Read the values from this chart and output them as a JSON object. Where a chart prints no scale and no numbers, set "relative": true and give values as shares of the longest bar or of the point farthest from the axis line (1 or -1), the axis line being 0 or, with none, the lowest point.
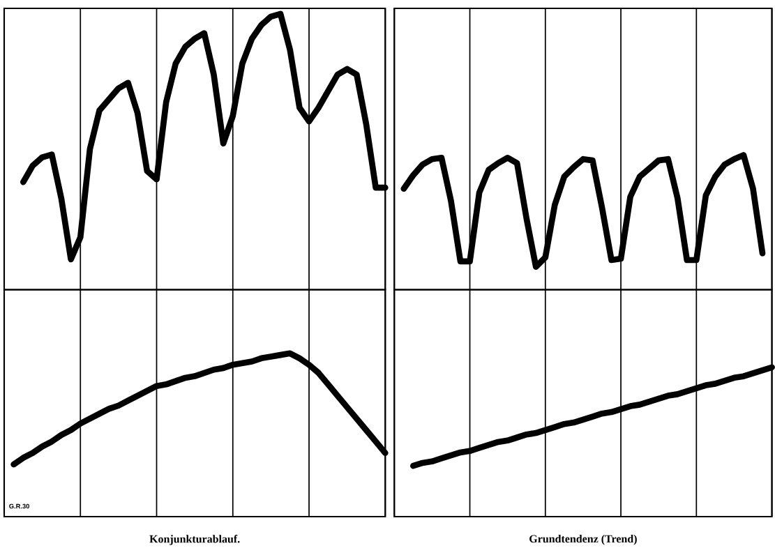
{
  "chart_data": [
    {
      "type": "line",
      "relative": true,
      "grid": "x",
      "color": "#000000",
      "categories": [
        null,
        null,
        null,
        null,
        null,
        null,
        null,
        null,
        null,
        null,
        null,
        null,
        null,
        null,
        null,
        null,
        null,
        null,
        null,
        null,
        null,
        null,
        null,
        null,
        null,
        null,
        null,
        null,
        null,
        null,
        null,
        null,
        null,
        null,
        null,
        null,
        null,
        null,
        null,
        null,
        null
      ],
      "values": [
        null,
        null,
        0.39,
        0.45,
        0.48,
        0.49,
        0.33,
        0.11,
        0.19,
        0.51,
        0.65,
        0.69,
        0.73,
        0.75,
        0.64,
        0.43,
        0.4,
        0.68,
        0.82,
        0.88,
        0.91,
        0.93,
        0.78,
        0.53,
        0.63,
        0.82,
        0.91,
        0.96,
        0.99,
        1,
        0.87,
        0.66,
        0.61,
        0.66,
        0.72,
        0.78,
        0.8,
        0.78,
        0.6,
        0.37,
        0.37
      ]
    },
    {
      "type": "line",
      "relative": true,
      "grid": "x",
      "color": "#000000",
      "categories": [
        null,
        null,
        null,
        null,
        null,
        null,
        null,
        null,
        null,
        null,
        null,
        null,
        null,
        null,
        null,
        null,
        null,
        null,
        null,
        null,
        null,
        null,
        null,
        null,
        null,
        null,
        null,
        null,
        null,
        null,
        null,
        null,
        null,
        null,
        null,
        null,
        null,
        null,
        null,
        null,
        null
      ],
      "values": [
        null,
        0.75,
        0.85,
        0.93,
        0.97,
        0.98,
        0.66,
        0.21,
        0.21,
        0.72,
        0.89,
        0.94,
        0.98,
        0.94,
        0.53,
        0.17,
        0.24,
        0.63,
        0.84,
        0.91,
        0.97,
        0.96,
        0.61,
        0.22,
        0.23,
        0.69,
        0.84,
        0.9,
        0.96,
        0.97,
        0.68,
        0.22,
        0.22,
        0.7,
        0.84,
        0.93,
        0.97,
        1,
        0.75,
        0.27,
        null
      ]
    },
    {
      "type": "line",
      "relative": true,
      "grid": "x",
      "color": "#000000",
      "xlabel": "**Konjunkturablauf.**",
      "annotations": [
        "G.R.30"
      ],
      "categories": [
        null,
        null,
        null,
        null,
        null,
        null,
        null,
        null,
        null,
        null,
        null,
        null,
        null,
        null,
        null,
        null,
        null,
        null,
        null,
        null,
        null,
        null,
        null,
        null,
        null,
        null,
        null,
        null,
        null,
        null,
        null,
        null,
        null,
        null,
        null,
        null,
        null,
        null,
        null,
        null,
        null
      ],
      "values": [
        null,
        0.32,
        0.36,
        0.39,
        0.43,
        0.46,
        0.5,
        0.53,
        0.57,
        0.6,
        0.63,
        0.66,
        0.68,
        0.71,
        0.74,
        0.77,
        0.8,
        0.81,
        0.83,
        0.85,
        0.86,
        0.88,
        0.9,
        0.91,
        0.93,
        0.94,
        0.95,
        0.97,
        0.98,
        0.99,
        1,
        0.97,
        0.93,
        0.88,
        0.81,
        0.74,
        0.67,
        0.6,
        0.53,
        0.46,
        0.39
      ]
    },
    {
      "type": "line",
      "relative": true,
      "grid": "x",
      "color": "#000000",
      "xlabel": "**Grundtendenz  (Trend)**",
      "categories": [
        null,
        null,
        null,
        null,
        null,
        null,
        null,
        null,
        null,
        null,
        null,
        null,
        null,
        null,
        null,
        null,
        null,
        null,
        null,
        null,
        null,
        null,
        null,
        null,
        null,
        null,
        null,
        null,
        null,
        null,
        null,
        null,
        null,
        null,
        null,
        null,
        null,
        null,
        null,
        null,
        null
      ],
      "values": [
        null,
        null,
        0.34,
        0.36,
        0.37,
        0.39,
        0.41,
        0.43,
        0.44,
        0.46,
        0.48,
        0.5,
        0.51,
        0.53,
        0.55,
        0.56,
        0.58,
        0.6,
        0.62,
        0.63,
        0.65,
        0.67,
        0.69,
        0.7,
        0.72,
        0.74,
        0.75,
        0.77,
        0.79,
        0.81,
        0.82,
        0.84,
        0.86,
        0.88,
        0.89,
        0.91,
        0.93,
        0.94,
        0.96,
        0.98,
        1
      ]
    }
  ]
}
